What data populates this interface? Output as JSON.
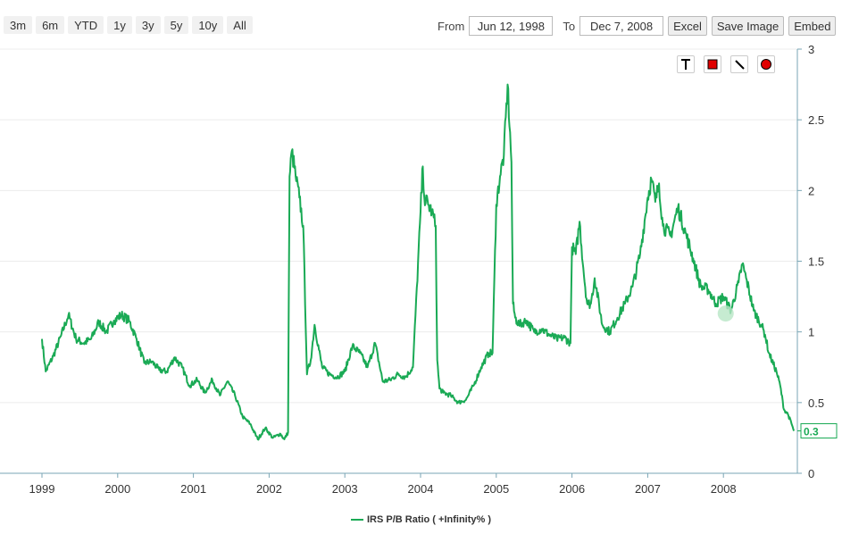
{
  "range_buttons": [
    "3m",
    "6m",
    "YTD",
    "1y",
    "3y",
    "5y",
    "10y",
    "All"
  ],
  "date_range": {
    "from_label": "From",
    "from_value": "Jun 12, 1998",
    "to_label": "To",
    "to_value": "Dec 7, 2008"
  },
  "actions": {
    "excel": "Excel",
    "save_image": "Save Image",
    "embed": "Embed"
  },
  "drawing_tools": [
    "text-tool-icon",
    "rectangle-tool-icon",
    "line-tool-icon",
    "circle-tool-icon"
  ],
  "colors": {
    "series": "#1aaa55",
    "axis": "#7aa6b5",
    "grid": "#ececec",
    "marker": "#b8e6c6",
    "tool_red": "#e00000"
  },
  "chart_data": {
    "type": "line",
    "title": "",
    "xlabel": "",
    "ylabel": "",
    "x_tick_labels": [
      "1999",
      "2000",
      "2001",
      "2002",
      "2003",
      "2004",
      "2005",
      "2006",
      "2007",
      "2008"
    ],
    "y_tick_labels": [
      "0",
      "0.5",
      "1",
      "1.5",
      "2",
      "2.5",
      "3"
    ],
    "ylim": [
      0,
      3
    ],
    "xlim": [
      1999.0,
      2009.0
    ],
    "y_axis_side": "right",
    "grid": true,
    "legend_position": "bottom-center",
    "last_value_label": "0.3",
    "series": [
      {
        "name": "IRS P/B Ratio ( +Infinity% )",
        "x": [
          1999.0,
          1999.05,
          1999.15,
          1999.25,
          1999.35,
          1999.45,
          1999.55,
          1999.65,
          1999.75,
          1999.85,
          1999.95,
          2000.05,
          2000.15,
          2000.25,
          2000.35,
          2000.45,
          2000.55,
          2000.65,
          2000.75,
          2000.85,
          2000.95,
          2001.05,
          2001.15,
          2001.25,
          2001.35,
          2001.45,
          2001.55,
          2001.65,
          2001.75,
          2001.85,
          2001.95,
          2002.05,
          2002.15,
          2002.2,
          2002.25,
          2002.27,
          2002.3,
          2002.35,
          2002.4,
          2002.45,
          2002.5,
          2002.55,
          2002.6,
          2002.7,
          2002.8,
          2002.9,
          2003.0,
          2003.1,
          2003.2,
          2003.3,
          2003.4,
          2003.5,
          2003.6,
          2003.7,
          2003.8,
          2003.9,
          2004.0,
          2004.03,
          2004.05,
          2004.1,
          2004.15,
          2004.2,
          2004.22,
          2004.25,
          2004.3,
          2004.4,
          2004.5,
          2004.6,
          2004.7,
          2004.8,
          2004.9,
          2004.95,
          2005.0,
          2005.05,
          2005.1,
          2005.15,
          2005.2,
          2005.22,
          2005.25,
          2005.3,
          2005.4,
          2005.5,
          2005.6,
          2005.7,
          2005.8,
          2005.9,
          2005.98,
          2006.0,
          2006.05,
          2006.1,
          2006.15,
          2006.2,
          2006.25,
          2006.3,
          2006.4,
          2006.5,
          2006.6,
          2006.7,
          2006.8,
          2006.9,
          2007.0,
          2007.05,
          2007.1,
          2007.15,
          2007.2,
          2007.3,
          2007.4,
          2007.5,
          2007.6,
          2007.7,
          2007.8,
          2007.9,
          2008.0,
          2008.1,
          2008.2,
          2008.25,
          2008.3,
          2008.4,
          2008.5,
          2008.55,
          2008.6,
          2008.7,
          2008.75,
          2008.8,
          2008.85,
          2008.9,
          2008.93
        ],
        "values": [
          0.95,
          0.72,
          0.83,
          0.97,
          1.12,
          0.95,
          0.92,
          0.95,
          1.07,
          1.0,
          1.08,
          1.12,
          1.08,
          0.95,
          0.78,
          0.79,
          0.73,
          0.72,
          0.82,
          0.75,
          0.62,
          0.66,
          0.57,
          0.66,
          0.55,
          0.65,
          0.55,
          0.4,
          0.35,
          0.24,
          0.32,
          0.25,
          0.28,
          0.24,
          0.29,
          2.1,
          2.28,
          2.1,
          1.95,
          1.75,
          0.7,
          0.8,
          1.05,
          0.75,
          0.7,
          0.68,
          0.72,
          0.9,
          0.85,
          0.75,
          0.92,
          0.65,
          0.66,
          0.7,
          0.68,
          0.75,
          1.85,
          2.17,
          1.95,
          1.9,
          1.85,
          1.75,
          0.8,
          0.6,
          0.57,
          0.55,
          0.5,
          0.52,
          0.62,
          0.75,
          0.85,
          0.85,
          1.9,
          2.1,
          2.25,
          2.75,
          2.2,
          1.2,
          1.1,
          1.05,
          1.08,
          1.0,
          1.02,
          0.98,
          0.95,
          0.96,
          0.92,
          1.6,
          1.55,
          1.78,
          1.45,
          1.2,
          1.2,
          1.38,
          1.05,
          1.0,
          1.1,
          1.2,
          1.32,
          1.55,
          1.95,
          2.08,
          1.92,
          2.05,
          1.75,
          1.68,
          1.88,
          1.7,
          1.52,
          1.32,
          1.3,
          1.2,
          1.25,
          1.15,
          1.35,
          1.48,
          1.38,
          1.15,
          1.05,
          0.98,
          0.85,
          0.72,
          0.62,
          0.45,
          0.42,
          0.35,
          0.3
        ]
      }
    ]
  }
}
